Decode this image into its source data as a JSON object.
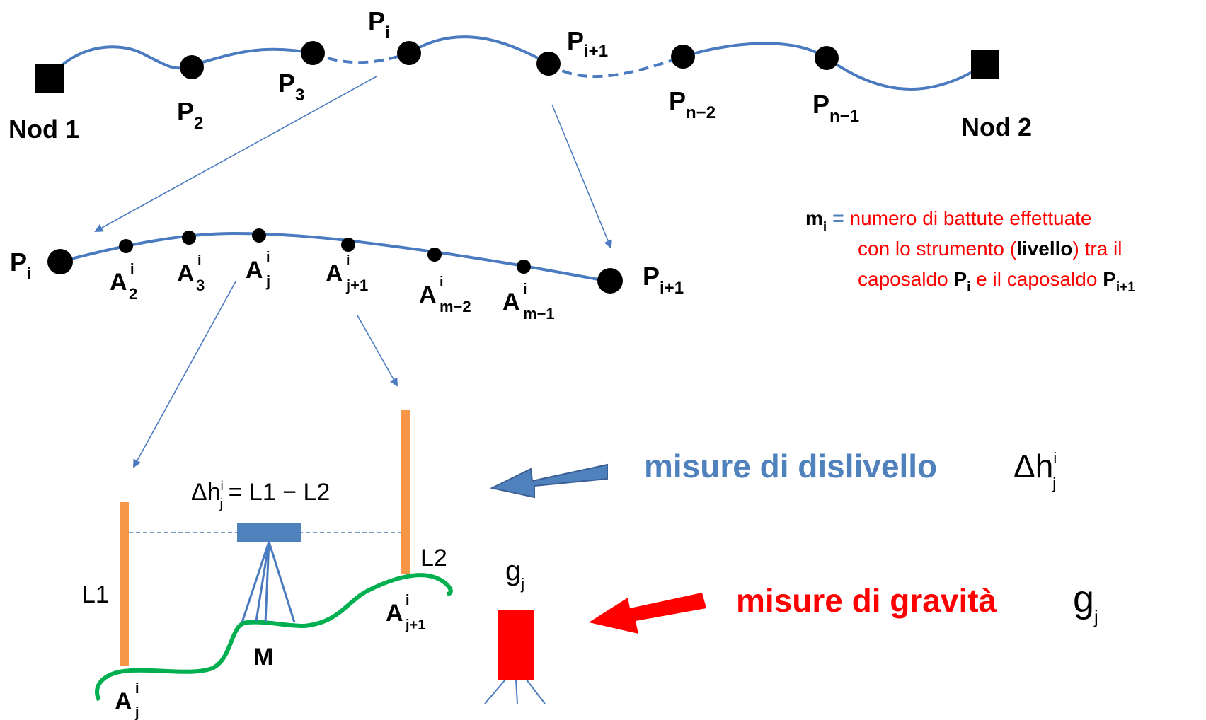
{
  "colors": {
    "line_blue": "#4a7abf",
    "accent_blue": "#4f81bd",
    "red": "#ff0000",
    "orange": "#f79646",
    "green": "#00b050",
    "black": "#000000"
  },
  "top_line": {
    "node1": "Nod 1",
    "node2": "Nod 2",
    "points": [
      {
        "main": "P",
        "sub": "2"
      },
      {
        "main": "P",
        "sub": "3"
      },
      {
        "main": "P",
        "sub": "i"
      },
      {
        "main": "P",
        "sub": "i+1"
      },
      {
        "main": "P",
        "sub": "n−2"
      },
      {
        "main": "P",
        "sub": "n−1"
      }
    ]
  },
  "middle_line": {
    "start": {
      "main": "P",
      "sub": "i"
    },
    "end": {
      "main": "P",
      "sub": "i+1"
    },
    "points": [
      {
        "main": "A",
        "sup": "i",
        "sub": "2"
      },
      {
        "main": "A",
        "sup": "i",
        "sub": "3"
      },
      {
        "main": "A",
        "sup": "i",
        "sub": "j"
      },
      {
        "main": "A",
        "sup": "i",
        "sub": "j+1"
      },
      {
        "main": "A",
        "sup": "i",
        "sub": "m−2"
      },
      {
        "main": "A",
        "sup": "i",
        "sub": "m−1"
      }
    ]
  },
  "definition": {
    "symbol_main": "m",
    "symbol_sub": "i",
    "equals": "=",
    "line1": "numero di battute effettuate",
    "line2_pre": "con lo strumento (",
    "line2_bold": "livello",
    "line2_post": ") tra il",
    "line3_pre": "caposaldo ",
    "line3_p1": "P",
    "line3_p1_sub": "i",
    "line3_mid": " e il caposaldo ",
    "line3_p2": "P",
    "line3_p2_sub": "i+1"
  },
  "bottom": {
    "formula_delta": "Δh",
    "formula_sup": "i",
    "formula_sub": "j",
    "formula_rhs": "= L1 − L2",
    "rod_left": "L1",
    "rod_right": "L2",
    "instrument": "M",
    "point_left": {
      "main": "A",
      "sup": "i",
      "sub": "j"
    },
    "point_right": {
      "main": "A",
      "sup": "i",
      "sub": "j+1"
    },
    "gravimeter_main": "g",
    "gravimeter_sub": "j"
  },
  "measures": {
    "leveling_label": "misure di dislivello",
    "leveling_symbol": "Δh",
    "leveling_sup": "i",
    "leveling_sub": "j",
    "gravity_label": "misure di gravità",
    "gravity_symbol": "g",
    "gravity_sub": "j"
  }
}
